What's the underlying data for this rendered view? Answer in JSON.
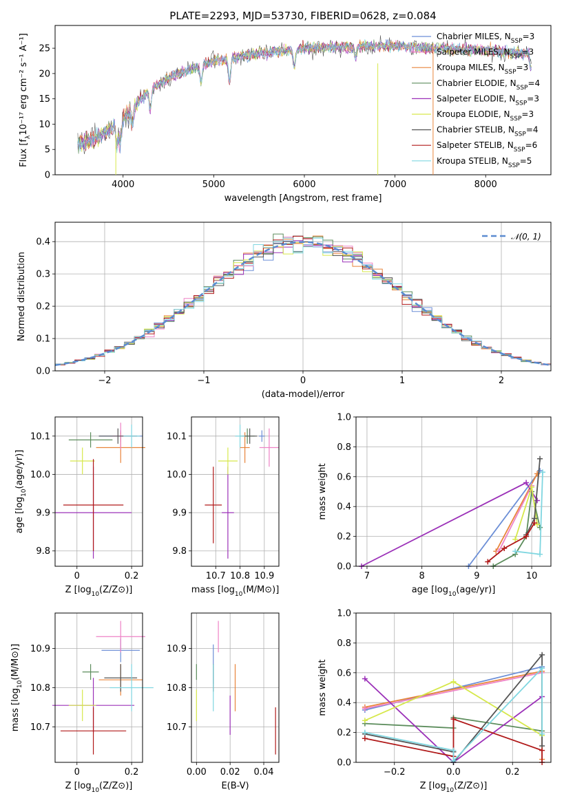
{
  "colors": [
    "#6b8ed6",
    "#e8843a",
    "#ee82c6",
    "#5b8c5b",
    "#9b30b8",
    "#d6e84a",
    "#555555",
    "#b01818",
    "#7fd6e0"
  ],
  "chart_data": [
    {
      "id": "spectrum",
      "type": "line",
      "title": "PLATE=2293, MJD=53730, FIBERID=0628, z=0.084",
      "xlabel": "wavelength [Angstrom, rest frame]",
      "ylabel": "Flux [fλ10⁻¹⁷ erg cm⁻² s⁻¹ A⁻¹]",
      "xlim": [
        3250,
        8720
      ],
      "ylim": [
        0,
        29.5
      ],
      "xticks": [
        4000,
        5000,
        6000,
        7000,
        8000
      ],
      "yticks": [
        0,
        5,
        10,
        15,
        20,
        25
      ],
      "continuum": [
        [
          3500,
          6
        ],
        [
          3700,
          7
        ],
        [
          3900,
          9.5
        ],
        [
          4000,
          11
        ],
        [
          4300,
          17
        ],
        [
          4600,
          20
        ],
        [
          5000,
          22.5
        ],
        [
          5500,
          24
        ],
        [
          6000,
          25
        ],
        [
          6500,
          25.3
        ],
        [
          7000,
          25.5
        ],
        [
          7500,
          25
        ],
        [
          8000,
          24.5
        ],
        [
          8500,
          24
        ]
      ],
      "legend": [
        "Chabrier MILES, N_SSP=3",
        "Salpeter MILES, N_SSP=3",
        "Kroupa MILES, N_SSP=3",
        "Chabrier ELODIE, N_SSP=4",
        "Salpeter ELODIE, N_SSP=3",
        "Kroupa ELODIE, N_SSP=3",
        "Chabrier STELIB, N_SSP=4",
        "Salpeter STELIB, N_SSP=6",
        "Kroupa STELIB, N_SSP=5"
      ],
      "legend_colors": [
        "#6b8ed6",
        "#ee82c6",
        "#e8843a",
        "#5b8c5b",
        "#9b30b8",
        "#d6e84a",
        "#555555",
        "#b01818",
        "#7fd6e0"
      ],
      "legend_position": "upper right"
    },
    {
      "id": "residuals",
      "type": "histogram",
      "xlabel": "(data-model)/error",
      "ylabel": "Normed distribution",
      "xlim": [
        -2.5,
        2.5
      ],
      "ylim": [
        0,
        0.46
      ],
      "xticks": [
        -2,
        -1,
        0,
        1,
        2
      ],
      "xticklabels": [
        "−2",
        "−1",
        "0",
        "1",
        "2"
      ],
      "yticks": [
        0.0,
        0.1,
        0.2,
        0.3,
        0.4
      ],
      "yticklabels": [
        "0.0",
        "0.1",
        "0.2",
        "0.3",
        "0.4"
      ],
      "bin_width": 0.1,
      "reference_label": "𝒩(0, 1)",
      "legend_position": "upper right"
    },
    {
      "id": "age-vs-Z",
      "type": "errorbar",
      "xlabel": "Z [log10(Z/Z⊙)]",
      "ylabel": "age  [log10(age/yr)]",
      "xlim": [
        -0.08,
        0.24
      ],
      "ylim": [
        9.76,
        10.15
      ],
      "xticks": [
        0.0,
        0.2
      ],
      "yticks": [
        9.8,
        9.9,
        10.0,
        10.1
      ],
      "points": [
        {
          "c": 0,
          "x": 0.16,
          "xerr": 0.08,
          "y": 10.1,
          "yerr": 0.015
        },
        {
          "c": 1,
          "x": 0.16,
          "xerr": 0.09,
          "y": 10.07,
          "yerr": 0.04
        },
        {
          "c": 2,
          "x": 0.16,
          "xerr": 0.03,
          "y": 10.1,
          "yerr": 0.035
        },
        {
          "c": 3,
          "x": 0.05,
          "xerr": 0.08,
          "y": 10.09,
          "yerr": 0.02
        },
        {
          "c": 4,
          "x": 0.06,
          "xerr": 0.14,
          "y": 9.9,
          "yerr": 0.12
        },
        {
          "c": 5,
          "x": 0.02,
          "xerr": 0.045,
          "y": 10.035,
          "yerr": 0.035
        },
        {
          "c": 6,
          "x": 0.15,
          "xerr": 0.07,
          "y": 10.1,
          "yerr": 0.02
        },
        {
          "c": 7,
          "x": 0.06,
          "xerr": 0.11,
          "y": 9.92,
          "yerr": 0.12
        },
        {
          "c": 8,
          "x": 0.2,
          "xerr": 0.03,
          "y": 10.1,
          "yerr": 0.03
        }
      ]
    },
    {
      "id": "age-vs-mass",
      "type": "errorbar",
      "xlabel": "mass [log10(M/M⊙)]",
      "xlim": [
        10.6,
        10.96
      ],
      "ylim": [
        9.76,
        10.15
      ],
      "xticks": [
        10.7,
        10.8,
        10.9
      ],
      "yticks": [
        9.8,
        9.9,
        10.0,
        10.1
      ],
      "points": [
        {
          "c": 0,
          "x": 10.89,
          "xerr": 0.012,
          "y": 10.1,
          "yerr": 0.015
        },
        {
          "c": 1,
          "x": 10.82,
          "xerr": 0.02,
          "y": 10.07,
          "yerr": 0.04
        },
        {
          "c": 2,
          "x": 10.92,
          "xerr": 0.04,
          "y": 10.07,
          "yerr": 0.05
        },
        {
          "c": 3,
          "x": 10.83,
          "xerr": 0.03,
          "y": 10.1,
          "yerr": 0.02
        },
        {
          "c": 4,
          "x": 10.75,
          "xerr": 0.025,
          "y": 9.9,
          "yerr": 0.12
        },
        {
          "c": 5,
          "x": 10.75,
          "xerr": 0.04,
          "y": 10.035,
          "yerr": 0.035
        },
        {
          "c": 6,
          "x": 10.84,
          "xerr": 0.03,
          "y": 10.1,
          "yerr": 0.02
        },
        {
          "c": 7,
          "x": 10.69,
          "xerr": 0.035,
          "y": 9.92,
          "yerr": 0.1
        },
        {
          "c": 8,
          "x": 10.8,
          "xerr": 0.02,
          "y": 10.1,
          "yerr": 0.03
        }
      ]
    },
    {
      "id": "weight-vs-age",
      "type": "line",
      "xlabel": "age  [log10(age/yr)]",
      "ylabel": "mass weight",
      "xlim": [
        6.8,
        10.35
      ],
      "ylim": [
        0,
        1
      ],
      "xticks": [
        7,
        8,
        9,
        10
      ],
      "yticks": [
        0.0,
        0.2,
        0.4,
        0.6,
        0.8,
        1.0
      ],
      "series": [
        {
          "c": 0,
          "x": [
            8.85,
            10.15
          ],
          "y": [
            0.0,
            0.64
          ]
        },
        {
          "c": 1,
          "x": [
            9.35,
            10.1
          ],
          "y": [
            0.1,
            0.62
          ]
        },
        {
          "c": 2,
          "x": [
            9.4,
            10.0
          ],
          "y": [
            0.1,
            0.54
          ]
        },
        {
          "c": 3,
          "x": [
            9.3,
            9.7,
            9.9,
            10.0,
            10.15
          ],
          "y": [
            0.0,
            0.08,
            0.2,
            0.5,
            0.26
          ]
        },
        {
          "c": 4,
          "x": [
            6.9,
            9.9,
            10.1
          ],
          "y": [
            0.0,
            0.56,
            0.44
          ]
        },
        {
          "c": 5,
          "x": [
            9.7,
            10.0,
            10.1
          ],
          "y": [
            0.18,
            0.53,
            0.28
          ]
        },
        {
          "c": 6,
          "x": [
            9.9,
            10.05,
            10.15
          ],
          "y": [
            0.21,
            0.32,
            0.72
          ]
        },
        {
          "c": 7,
          "x": [
            9.2,
            9.5,
            9.9,
            10.05
          ],
          "y": [
            0.03,
            0.12,
            0.2,
            0.29
          ]
        },
        {
          "c": 8,
          "x": [
            9.7,
            10.15,
            10.2
          ],
          "y": [
            0.1,
            0.08,
            0.63
          ]
        }
      ]
    },
    {
      "id": "mass-vs-Z",
      "type": "errorbar",
      "xlabel": "Z [log10(Z/Z⊙)]",
      "ylabel": "mass [log10(M/M⊙)]",
      "xlim": [
        -0.08,
        0.24
      ],
      "ylim": [
        10.61,
        10.99
      ],
      "xticks": [
        0.0,
        0.2
      ],
      "yticks": [
        10.7,
        10.8,
        10.9
      ],
      "points": [
        {
          "c": 0,
          "x": 0.16,
          "xerr": 0.07,
          "y": 10.895,
          "yerr": 0.03
        },
        {
          "c": 1,
          "x": 0.16,
          "xerr": 0.08,
          "y": 10.82,
          "yerr": 0.04
        },
        {
          "c": 2,
          "x": 0.16,
          "xerr": 0.09,
          "y": 10.93,
          "yerr": 0.04
        },
        {
          "c": 3,
          "x": 0.05,
          "xerr": 0.03,
          "y": 10.84,
          "yerr": 0.02
        },
        {
          "c": 4,
          "x": 0.06,
          "xerr": 0.15,
          "y": 10.755,
          "yerr": 0.07
        },
        {
          "c": 5,
          "x": 0.02,
          "xerr": 0.05,
          "y": 10.755,
          "yerr": 0.04
        },
        {
          "c": 6,
          "x": 0.16,
          "xerr": 0.06,
          "y": 10.825,
          "yerr": 0.035
        },
        {
          "c": 7,
          "x": 0.06,
          "xerr": 0.12,
          "y": 10.69,
          "yerr": 0.06
        },
        {
          "c": 8,
          "x": 0.2,
          "xerr": 0.08,
          "y": 10.8,
          "yerr": 0.06
        }
      ]
    },
    {
      "id": "mass-vs-ebv",
      "type": "errorbar",
      "xlabel": "E(B-V)",
      "xlim": [
        -0.003,
        0.049
      ],
      "ylim": [
        10.61,
        10.99
      ],
      "xticks": [
        0.0,
        0.02,
        0.04
      ],
      "xticklabels": [
        "0.00",
        "0.02",
        "0.04"
      ],
      "yticks": [
        10.7,
        10.8,
        10.9
      ],
      "points": [
        {
          "c": 0,
          "x": 0.01,
          "xerr": 0,
          "y": 10.86,
          "yerr": 0.05
        },
        {
          "c": 1,
          "x": 0.023,
          "xerr": 0,
          "y": 10.8,
          "yerr": 0.06
        },
        {
          "c": 2,
          "x": 0.013,
          "xerr": 0,
          "y": 10.93,
          "yerr": 0.04
        },
        {
          "c": 3,
          "x": 0.0,
          "xerr": 0,
          "y": 10.84,
          "yerr": 0.02
        },
        {
          "c": 4,
          "x": 0.02,
          "xerr": 0,
          "y": 10.73,
          "yerr": 0.05
        },
        {
          "c": 5,
          "x": 0.0,
          "xerr": 0,
          "y": 10.755,
          "yerr": 0.04
        },
        {
          "c": 6,
          "x": 0.01,
          "xerr": 0,
          "y": 10.825,
          "yerr": 0.035
        },
        {
          "c": 7,
          "x": 0.047,
          "xerr": 0,
          "y": 10.69,
          "yerr": 0.06
        },
        {
          "c": 8,
          "x": 0.01,
          "xerr": 0,
          "y": 10.8,
          "yerr": 0.06
        }
      ]
    },
    {
      "id": "weight-vs-Z",
      "type": "line",
      "xlabel": "Z [log10(Z/Z⊙)]",
      "ylabel": "mass weight",
      "xlim": [
        -0.33,
        0.33
      ],
      "ylim": [
        0,
        1
      ],
      "xticks": [
        -0.2,
        0.0,
        0.2
      ],
      "xticklabels": [
        "−0.2",
        "0.0",
        "0.2"
      ],
      "yticks": [
        0.0,
        0.2,
        0.4,
        0.6,
        0.8,
        1.0
      ],
      "series": [
        {
          "c": 0,
          "x": [
            -0.3,
            0.3
          ],
          "y": [
            0.35,
            0.64
          ]
        },
        {
          "c": 1,
          "x": [
            -0.3,
            0.3,
            0.3
          ],
          "y": [
            0.37,
            0.61,
            0.02
          ]
        },
        {
          "c": 2,
          "x": [
            -0.3,
            0.3
          ],
          "y": [
            0.36,
            0.6
          ]
        },
        {
          "c": 3,
          "x": [
            -0.3,
            0.0,
            0.0,
            0.3
          ],
          "y": [
            0.26,
            0.23,
            0.3,
            0.21
          ]
        },
        {
          "c": 4,
          "x": [
            -0.3,
            0.0,
            0.3
          ],
          "y": [
            0.56,
            0.0,
            0.44
          ]
        },
        {
          "c": 5,
          "x": [
            -0.3,
            0.0,
            0.3
          ],
          "y": [
            0.28,
            0.54,
            0.18
          ]
        },
        {
          "c": 6,
          "x": [
            -0.3,
            0.0,
            0.0,
            0.3,
            0.3
          ],
          "y": [
            0.19,
            0.07,
            0.0,
            0.72,
            0.11
          ]
        },
        {
          "c": 7,
          "x": [
            -0.3,
            0.0,
            0.0,
            0.3,
            0.3
          ],
          "y": [
            0.16,
            0.04,
            0.29,
            0.08,
            0.0
          ]
        },
        {
          "c": 8,
          "x": [
            -0.3,
            0.0,
            0.0,
            0.3,
            0.3
          ],
          "y": [
            0.2,
            0.08,
            0.01,
            0.63,
            0.19
          ]
        }
      ]
    }
  ]
}
